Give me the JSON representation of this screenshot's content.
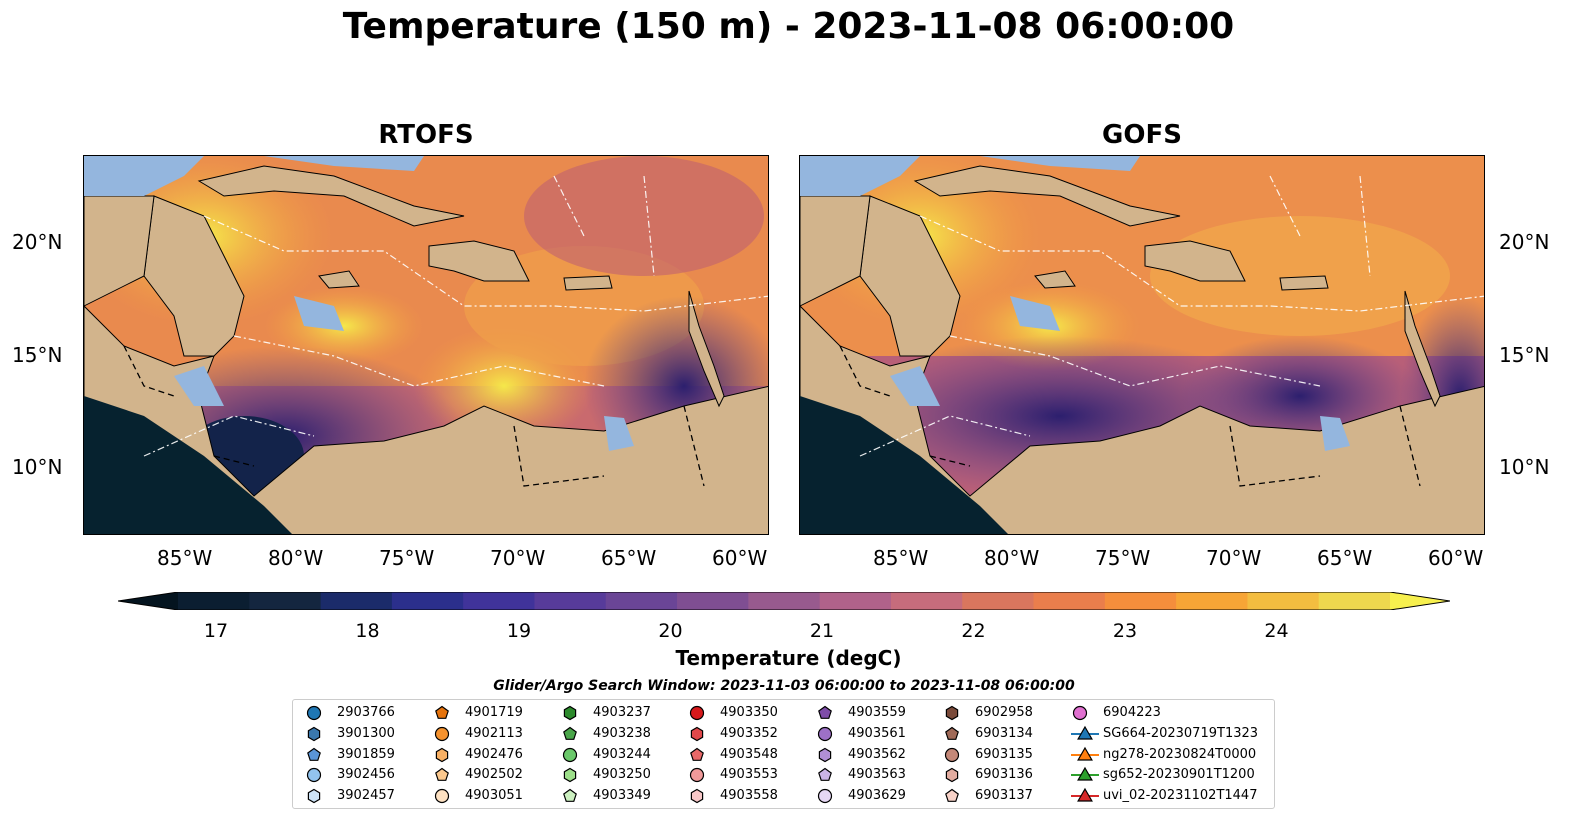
{
  "title": "Temperature (150 m) - 2023-11-08 06:00:00",
  "panels": [
    {
      "title": "RTOFS"
    },
    {
      "title": "GOFS"
    }
  ],
  "lon_ticks": [
    "85°W",
    "80°W",
    "75°W",
    "70°W",
    "65°W",
    "60°W"
  ],
  "lat_ticks": [
    "20°N",
    "15°N",
    "10°N"
  ],
  "colorbar": {
    "label": "Temperature (degC)",
    "ticks": [
      "17",
      "18",
      "19",
      "20",
      "21",
      "22",
      "23",
      "24"
    ],
    "range": [
      16.75,
      24.75
    ],
    "extend": "both"
  },
  "search_window": "Glider/Argo Search Window: 2023-11-03 06:00:00 to 2023-11-08 06:00:00",
  "legend": [
    {
      "label": "2903766",
      "marker": "circle",
      "color": "#1f77b4"
    },
    {
      "label": "3901300",
      "marker": "hexagon",
      "color": "#3a78ad"
    },
    {
      "label": "3901859",
      "marker": "pentagon",
      "color": "#5a95d8"
    },
    {
      "label": "3902456",
      "marker": "circle",
      "color": "#92c3ee"
    },
    {
      "label": "3902457",
      "marker": "hexagon",
      "color": "#cde3f6"
    },
    {
      "label": "4901719",
      "marker": "pentagon",
      "color": "#e6730c"
    },
    {
      "label": "4902113",
      "marker": "circle",
      "color": "#f5922e"
    },
    {
      "label": "4902476",
      "marker": "hexagon",
      "color": "#f8b064"
    },
    {
      "label": "4902502",
      "marker": "pentagon",
      "color": "#fbc88e"
    },
    {
      "label": "4903051",
      "marker": "circle",
      "color": "#fde1c2"
    },
    {
      "label": "4903237",
      "marker": "hexagon",
      "color": "#2c8a2c"
    },
    {
      "label": "4903238",
      "marker": "pentagon",
      "color": "#4aa64a"
    },
    {
      "label": "4903244",
      "marker": "circle",
      "color": "#6ac86a"
    },
    {
      "label": "4903250",
      "marker": "hexagon",
      "color": "#9ddf8a"
    },
    {
      "label": "4903349",
      "marker": "pentagon",
      "color": "#ccf0c0"
    },
    {
      "label": "4903350",
      "marker": "circle",
      "color": "#d6191b"
    },
    {
      "label": "4903352",
      "marker": "hexagon",
      "color": "#e0484a"
    },
    {
      "label": "4903548",
      "marker": "pentagon",
      "color": "#e86868"
    },
    {
      "label": "4903553",
      "marker": "circle",
      "color": "#f09a9a"
    },
    {
      "label": "4903558",
      "marker": "hexagon",
      "color": "#f8c8c8"
    },
    {
      "label": "4903559",
      "marker": "pentagon",
      "color": "#7e4ca8"
    },
    {
      "label": "4903561",
      "marker": "circle",
      "color": "#9d70c6"
    },
    {
      "label": "4903562",
      "marker": "hexagon",
      "color": "#b08fd6"
    },
    {
      "label": "4903563",
      "marker": "pentagon",
      "color": "#cbb3e6"
    },
    {
      "label": "4903629",
      "marker": "circle",
      "color": "#e6d8f4"
    },
    {
      "label": "6902958",
      "marker": "hexagon",
      "color": "#7a4a3a"
    },
    {
      "label": "6903134",
      "marker": "pentagon",
      "color": "#a06a58"
    },
    {
      "label": "6903135",
      "marker": "circle",
      "color": "#c48878"
    },
    {
      "label": "6903136",
      "marker": "hexagon",
      "color": "#e2aca0"
    },
    {
      "label": "6903137",
      "marker": "pentagon",
      "color": "#f8d2c8"
    },
    {
      "label": "6904223",
      "marker": "circle",
      "color": "#e070d0"
    },
    {
      "label": "SG664-20230719T1323",
      "marker": "triangle",
      "color": "#1f77b4"
    },
    {
      "label": "ng278-20230824T0000",
      "marker": "triangle",
      "color": "#ff7f0e"
    },
    {
      "label": "sg652-20230901T1200",
      "marker": "triangle",
      "color": "#2ca02c"
    },
    {
      "label": "uvi_02-20231102T1447",
      "marker": "triangle",
      "color": "#d62728"
    }
  ]
}
